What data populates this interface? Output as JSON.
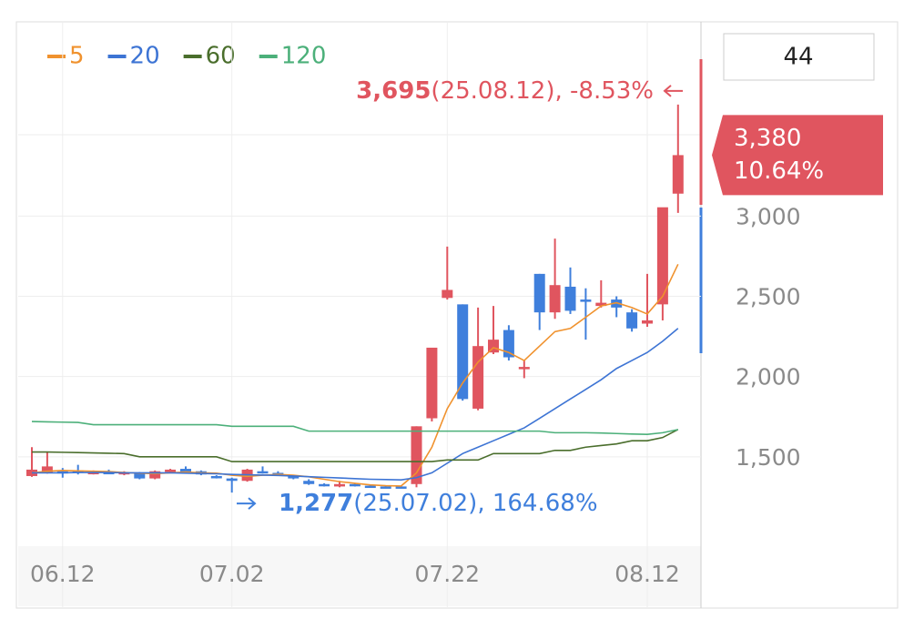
{
  "chart_data": {
    "type": "candlestick",
    "period": "44",
    "categories": [
      null,
      null,
      "06.12",
      null,
      null,
      null,
      null,
      null,
      null,
      null,
      null,
      null,
      null,
      "07.02",
      null,
      null,
      null,
      null,
      null,
      null,
      null,
      null,
      null,
      null,
      null,
      null,
      null,
      "07.22",
      null,
      null,
      null,
      null,
      null,
      null,
      null,
      null,
      null,
      null,
      null,
      null,
      "08.12",
      null,
      null
    ],
    "open": [
      1380,
      1400,
      1410,
      1415,
      1395,
      1405,
      1390,
      1400,
      1365,
      1405,
      1425,
      1410,
      1380,
      1365,
      1350,
      1410,
      1400,
      1380,
      1350,
      1330,
      1315,
      1330,
      1320,
      1315,
      1315,
      1330,
      1740,
      2490,
      2450,
      1800,
      2150,
      2290,
      2050,
      2640,
      2400,
      2560,
      2480,
      2440,
      2480,
      2400,
      2330,
      2450,
      3140
    ],
    "high": [
      1560,
      1530,
      1430,
      1450,
      1415,
      1420,
      1410,
      1405,
      1415,
      1425,
      1440,
      1415,
      1385,
      1370,
      1425,
      1440,
      1410,
      1385,
      1360,
      1335,
      1350,
      1335,
      1325,
      1320,
      1320,
      1690,
      2180,
      2810,
      2450,
      2430,
      2440,
      2320,
      2100,
      2640,
      2860,
      2680,
      2550,
      2600,
      2500,
      2420,
      2640,
      3050,
      3695
    ],
    "low": [
      1375,
      1395,
      1370,
      1390,
      1390,
      1395,
      1385,
      1360,
      1360,
      1400,
      1395,
      1385,
      1365,
      1277,
      1345,
      1395,
      1380,
      1360,
      1325,
      1315,
      1310,
      1315,
      1310,
      1305,
      1305,
      1310,
      1720,
      2480,
      1850,
      1790,
      2140,
      2100,
      1990,
      2290,
      2360,
      2390,
      2230,
      2430,
      2370,
      2280,
      2310,
      2350,
      3020
    ],
    "close": [
      1420,
      1440,
      1400,
      1405,
      1405,
      1400,
      1405,
      1365,
      1410,
      1420,
      1405,
      1390,
      1370,
      1350,
      1420,
      1400,
      1385,
      1365,
      1330,
      1320,
      1330,
      1320,
      1315,
      1310,
      1310,
      1690,
      2180,
      2540,
      1860,
      2190,
      2230,
      2120,
      2060,
      2400,
      2570,
      2410,
      2470,
      2460,
      2430,
      2300,
      2350,
      3055,
      3380
    ],
    "up_color": "#e0555f",
    "down_color": "#3f7fdc",
    "ma": [
      {
        "name": "5",
        "color": "#f0922e",
        "values": [
          1400,
          1410,
          1415,
          1412,
          1410,
          1408,
          1402,
          1398,
          1395,
          1400,
          1405,
          1400,
          1398,
          1385,
          1378,
          1385,
          1390,
          1385,
          1375,
          1360,
          1345,
          1335,
          1325,
          1320,
          1318,
          1400,
          1560,
          1800,
          1960,
          2090,
          2180,
          2150,
          2100,
          2190,
          2280,
          2300,
          2370,
          2440,
          2460,
          2430,
          2390,
          2500,
          2700
        ]
      },
      {
        "name": "20",
        "color": "#3d74d4",
        "values": [
          1400,
          1400,
          1400,
          1402,
          1402,
          1402,
          1400,
          1400,
          1400,
          1400,
          1398,
          1396,
          1394,
          1390,
          1388,
          1386,
          1384,
          1380,
          1376,
          1372,
          1368,
          1364,
          1360,
          1358,
          1356,
          1370,
          1400,
          1460,
          1520,
          1560,
          1600,
          1640,
          1680,
          1740,
          1800,
          1860,
          1920,
          1980,
          2050,
          2100,
          2150,
          2220,
          2300
        ]
      },
      {
        "name": "60",
        "color": "#4a6e2c",
        "values": [
          1530,
          1530,
          1528,
          1526,
          1524,
          1522,
          1520,
          1500,
          1500,
          1500,
          1500,
          1500,
          1500,
          1470,
          1470,
          1470,
          1470,
          1470,
          1470,
          1470,
          1470,
          1470,
          1470,
          1470,
          1470,
          1470,
          1470,
          1480,
          1480,
          1480,
          1520,
          1520,
          1520,
          1520,
          1540,
          1540,
          1560,
          1570,
          1580,
          1600,
          1600,
          1620,
          1670
        ]
      },
      {
        "name": "120",
        "color": "#4cb07a",
        "values": [
          1720,
          1718,
          1716,
          1714,
          1700,
          1700,
          1700,
          1700,
          1700,
          1700,
          1700,
          1700,
          1700,
          1690,
          1690,
          1690,
          1690,
          1690,
          1660,
          1660,
          1660,
          1660,
          1660,
          1660,
          1660,
          1660,
          1660,
          1660,
          1660,
          1660,
          1660,
          1660,
          1660,
          1660,
          1650,
          1650,
          1650,
          1648,
          1645,
          1642,
          1640,
          1650,
          1670
        ]
      }
    ],
    "ylim": [
      943,
      4205
    ],
    "yticks": [
      {
        "value": 1500,
        "label": "1,500"
      },
      {
        "value": 2000,
        "label": "2,000"
      },
      {
        "value": 2500,
        "label": "2,500"
      },
      {
        "value": 3000,
        "label": "3,000"
      }
    ],
    "grid": true,
    "max_mark": {
      "value": 3695,
      "label": "3,695",
      "detail": "(25.08.12), -8.53%"
    },
    "min_mark": {
      "value": 1277,
      "label": "1,277",
      "detail": "(25.07.02), 164.68%"
    },
    "current": {
      "value": 3380,
      "label": "3,380",
      "change_label": "10.64%"
    }
  }
}
